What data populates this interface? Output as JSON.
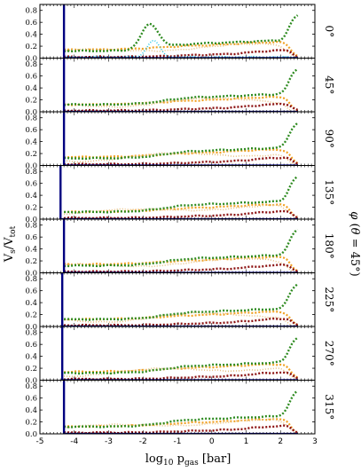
{
  "chart_data": {
    "type": "line",
    "xlabel": "log₁₀ p_gas [bar]",
    "ylabel": "V_s/V_tot",
    "right_label": "φ (θ = 45°)",
    "xlim": [
      -5,
      3
    ],
    "ylim": [
      0,
      0.9
    ],
    "xticks": [
      "-5",
      "-4",
      "-3",
      "-2",
      "-1",
      "0",
      "1",
      "2",
      "3"
    ],
    "yticks": [
      "0.0",
      "0.2",
      "0.4",
      "0.6",
      "0.8"
    ],
    "colors": {
      "vertical_line": "#000080",
      "green": "#2e8b20",
      "orange": "#f0a020",
      "darkred": "#8b1010",
      "cyan": "#20c8e8",
      "tan": "#e8c080"
    },
    "panels": [
      {
        "label": "0°",
        "vline": -4.3,
        "cyan_bump": true
      },
      {
        "label": "45°",
        "vline": -4.3
      },
      {
        "label": "90°",
        "vline": -4.3
      },
      {
        "label": "135°",
        "vline": -4.4
      },
      {
        "label": "180°",
        "vline": -4.3
      },
      {
        "label": "225°",
        "vline": -4.35
      },
      {
        "label": "270°",
        "vline": -4.35
      },
      {
        "label": "315°",
        "vline": -4.3
      }
    ]
  }
}
